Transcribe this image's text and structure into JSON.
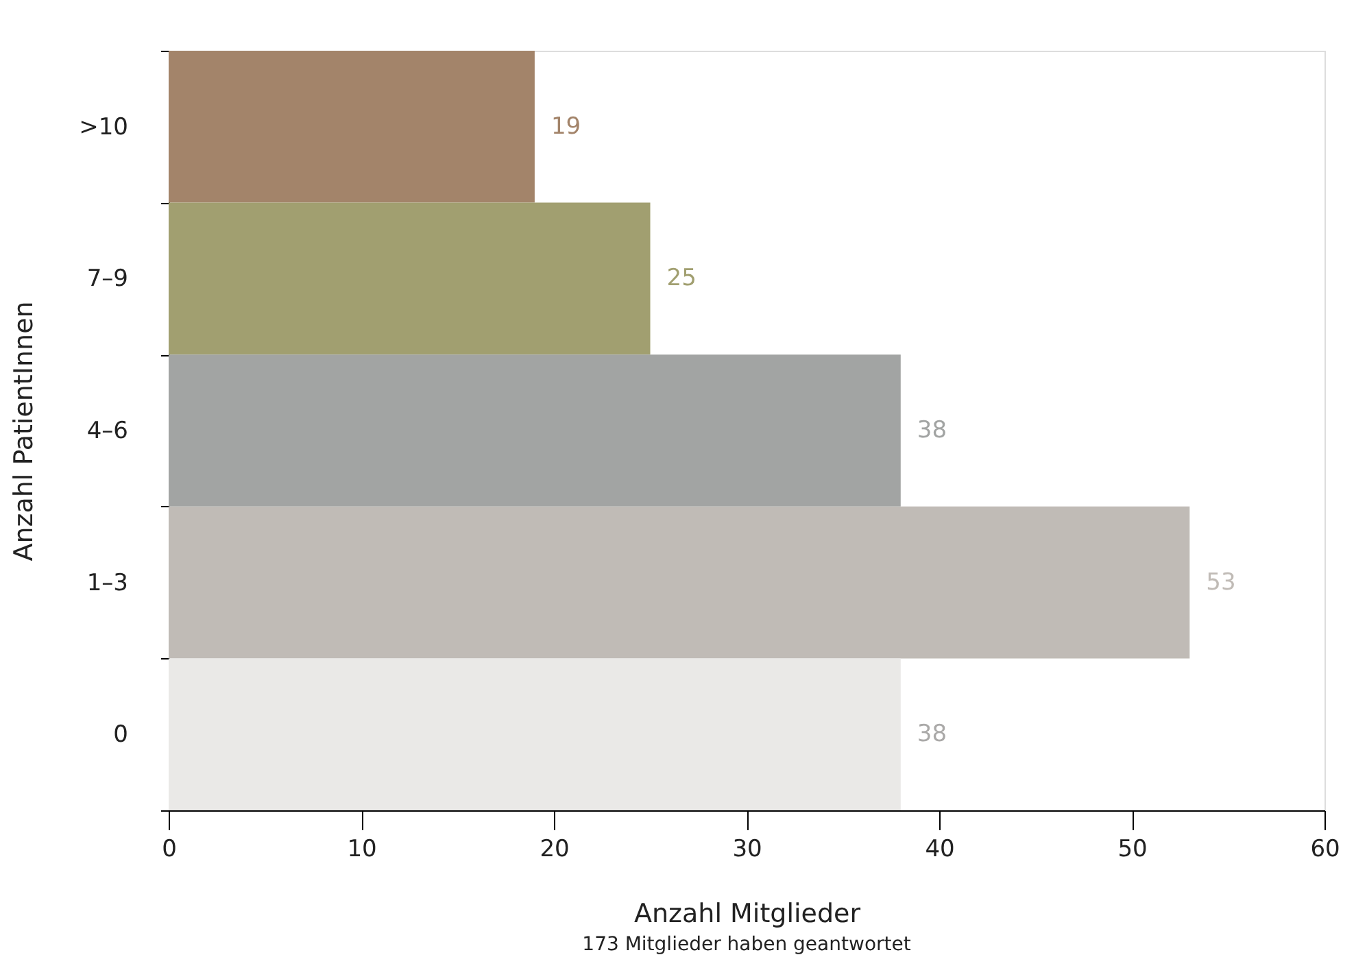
{
  "chart_data": {
    "type": "bar",
    "orientation": "horizontal",
    "xlabel": "Anzahl Mitglieder",
    "ylabel": "Anzahl PatientInnen",
    "categories": [
      ">10",
      "7–9",
      "4–6",
      "1–3",
      "0"
    ],
    "values": [
      19,
      25,
      38,
      53,
      38
    ],
    "colors": [
      "#a3846a",
      "#a19f70",
      "#a2a4a3",
      "#c0bbb6",
      "#eae9e7"
    ],
    "xlim": [
      0,
      60
    ],
    "xticks": [
      0,
      10,
      20,
      30,
      40,
      50,
      60
    ],
    "grid": false,
    "data_labels": true,
    "annotations": [
      "173 Mitglieder haben geantwortet"
    ]
  }
}
